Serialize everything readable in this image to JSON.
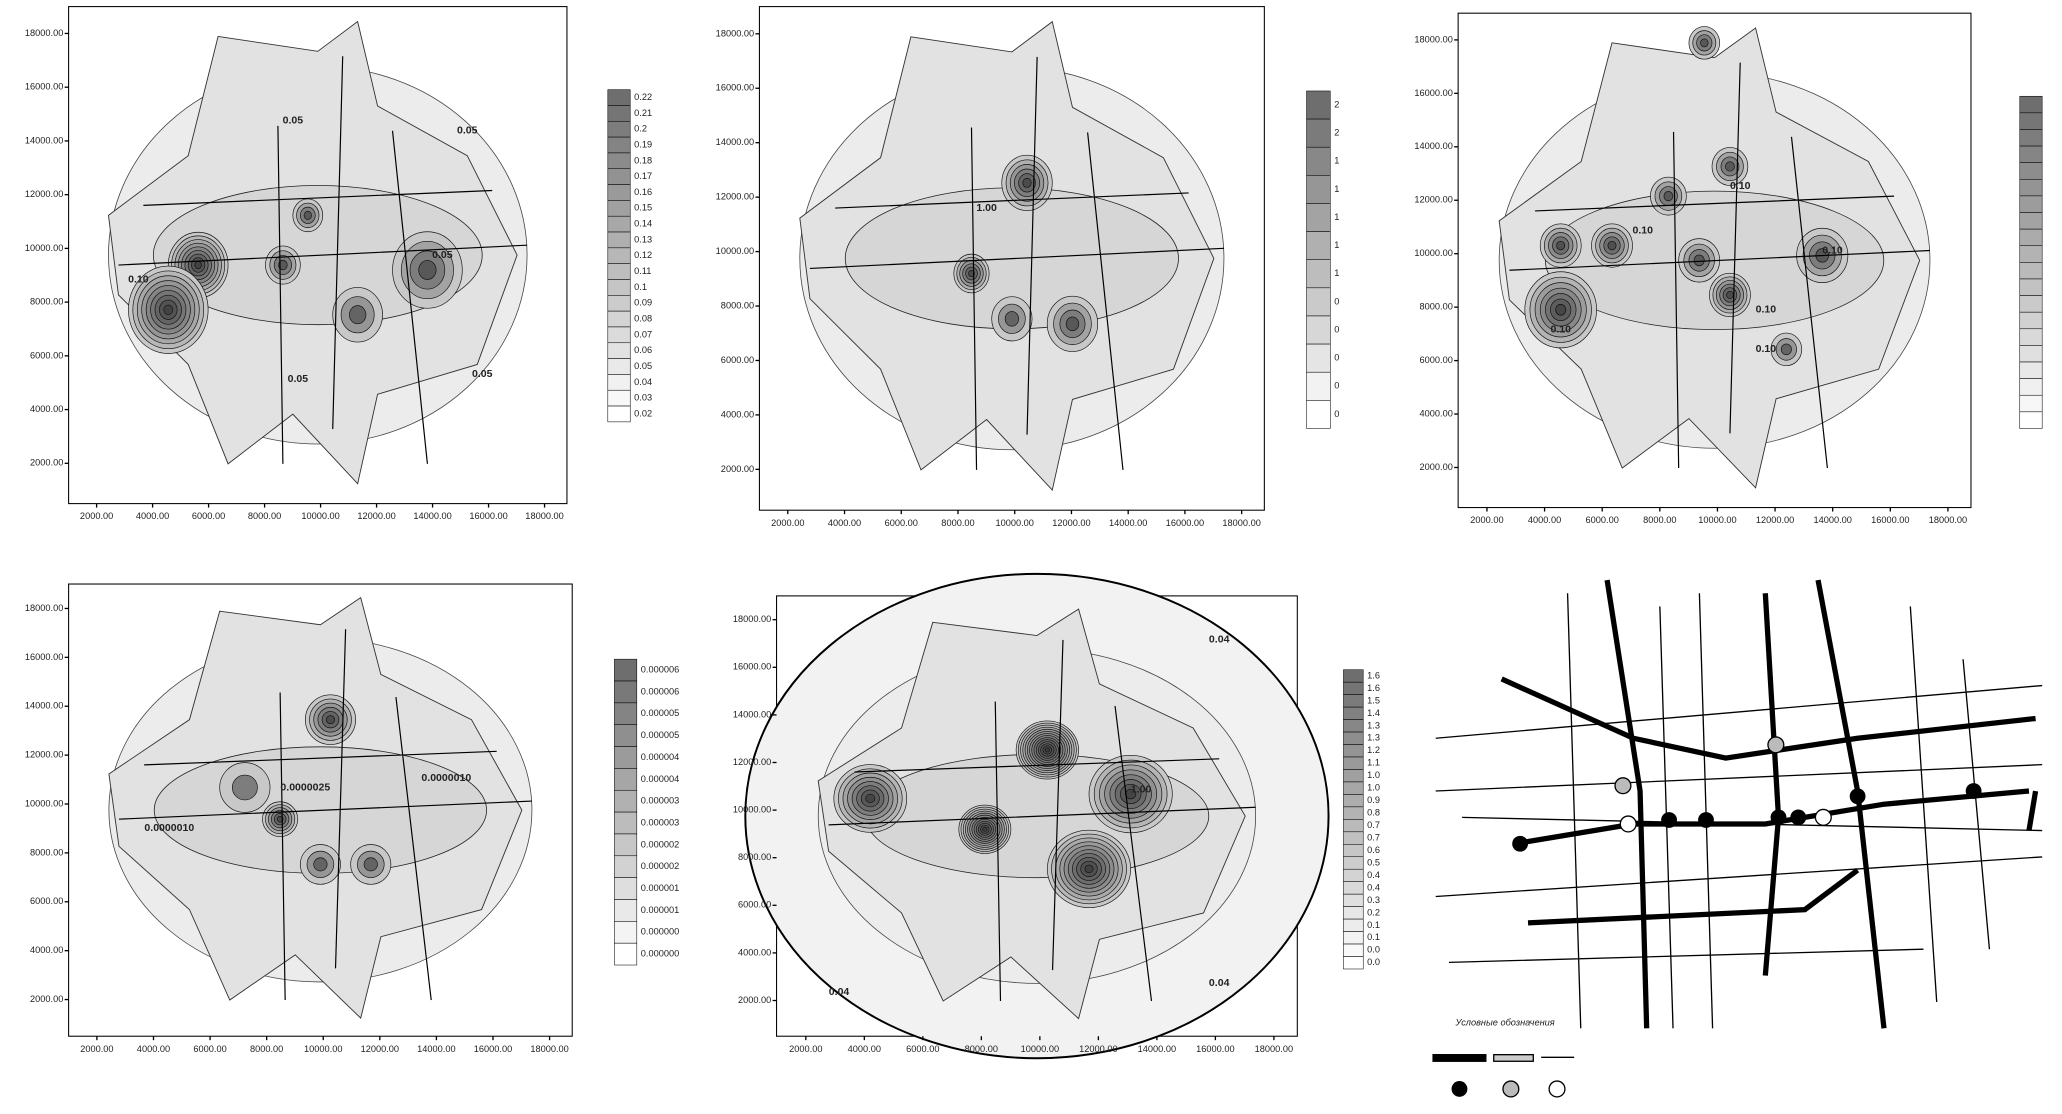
{
  "chart_data": [
    {
      "type": "contour",
      "xlim": [
        1000,
        18800
      ],
      "ylim": [
        500,
        19000
      ],
      "xticks": [
        {
          "value": 2000,
          "label": "2000.00"
        },
        {
          "value": 4000,
          "label": "4000.00"
        },
        {
          "value": 6000,
          "label": "6000.00"
        },
        {
          "value": 8000,
          "label": "8000.00"
        },
        {
          "value": 10000,
          "label": "10000.00"
        },
        {
          "value": 12000,
          "label": "12000.00"
        },
        {
          "value": 14000,
          "label": "14000.00"
        },
        {
          "value": 16000,
          "label": "16000.00"
        },
        {
          "value": 18000,
          "label": "18000.00"
        }
      ],
      "yticks": [
        {
          "value": 2000,
          "label": "2000.00"
        },
        {
          "value": 4000,
          "label": "4000.00"
        },
        {
          "value": 6000,
          "label": "6000.00"
        },
        {
          "value": 8000,
          "label": "8000.00"
        },
        {
          "value": 10000,
          "label": "10000.00"
        },
        {
          "value": 12000,
          "label": "12000.00"
        },
        {
          "value": 14000,
          "label": "14000.00"
        },
        {
          "value": 16000,
          "label": "16000.00"
        },
        {
          "value": 18000,
          "label": "18000.00"
        }
      ],
      "levels": [
        0.22,
        0.21,
        0.2,
        0.19,
        0.18,
        0.17,
        0.16,
        0.15,
        0.14,
        0.13,
        0.12,
        0.11,
        0.1,
        0.09,
        0.08,
        0.07,
        0.06,
        0.05,
        0.04,
        0.03,
        0.02
      ],
      "annotations": [
        "0.05",
        "0.05",
        "0.05",
        "0.05",
        "0.10",
        "0.05"
      ]
    },
    {
      "type": "contour",
      "xlim": [
        1000,
        18800
      ],
      "ylim": [
        500,
        19000
      ],
      "xticks": [
        {
          "value": 2000,
          "label": "2000.00"
        },
        {
          "value": 4000,
          "label": "4000.00"
        },
        {
          "value": 6000,
          "label": "6000.00"
        },
        {
          "value": 8000,
          "label": "8000.00"
        },
        {
          "value": 10000,
          "label": "10000.00"
        },
        {
          "value": 12000,
          "label": "12000.00"
        },
        {
          "value": 14000,
          "label": "14000.00"
        },
        {
          "value": 16000,
          "label": "16000.00"
        },
        {
          "value": 18000,
          "label": "18000.00"
        }
      ],
      "yticks": [
        {
          "value": 2000,
          "label": "2000.00"
        },
        {
          "value": 4000,
          "label": "4000.00"
        },
        {
          "value": 6000,
          "label": "6000.00"
        },
        {
          "value": 8000,
          "label": "8000.00"
        },
        {
          "value": 10000,
          "label": "10000.00"
        },
        {
          "value": 12000,
          "label": "12000.00"
        },
        {
          "value": 14000,
          "label": "14000.00"
        },
        {
          "value": 16000,
          "label": "16000.00"
        },
        {
          "value": 18000,
          "label": "18000.00"
        }
      ],
      "colorbar_labels": [
        "2",
        "2",
        "1",
        "1",
        "1",
        "1",
        "1",
        "0",
        "0",
        "0",
        "0",
        "0"
      ],
      "annotations": [
        "1.00"
      ]
    },
    {
      "type": "contour",
      "xlim": [
        1000,
        18800
      ],
      "ylim": [
        500,
        19000
      ],
      "xticks": [
        {
          "value": 2000,
          "label": "2000.00"
        },
        {
          "value": 4000,
          "label": "4000.00"
        },
        {
          "value": 6000,
          "label": "6000.00"
        },
        {
          "value": 8000,
          "label": "8000.00"
        },
        {
          "value": 10000,
          "label": "10000.00"
        },
        {
          "value": 12000,
          "label": "12000.00"
        },
        {
          "value": 14000,
          "label": "14000.00"
        },
        {
          "value": 16000,
          "label": "16000.00"
        },
        {
          "value": 18000,
          "label": "18000.00"
        }
      ],
      "yticks": [
        {
          "value": 2000,
          "label": "2000.00"
        },
        {
          "value": 4000,
          "label": "4000.00"
        },
        {
          "value": 6000,
          "label": "6000.00"
        },
        {
          "value": 8000,
          "label": "8000.00"
        },
        {
          "value": 10000,
          "label": "10000.00"
        },
        {
          "value": 12000,
          "label": "12000.00"
        },
        {
          "value": 14000,
          "label": "14000.00"
        },
        {
          "value": 16000,
          "label": "16000.00"
        },
        {
          "value": 18000,
          "label": "18000.00"
        }
      ],
      "annotations": [
        "0.10",
        "0.10",
        "0.10",
        "0.10",
        "0.10",
        "0.10"
      ]
    },
    {
      "type": "contour",
      "xlim": [
        1000,
        18800
      ],
      "ylim": [
        500,
        19000
      ],
      "xticks": [
        {
          "value": 2000,
          "label": "2000.00"
        },
        {
          "value": 4000,
          "label": "4000.00"
        },
        {
          "value": 6000,
          "label": "6000.00"
        },
        {
          "value": 8000,
          "label": "8000.00"
        },
        {
          "value": 10000,
          "label": "10000.00"
        },
        {
          "value": 12000,
          "label": "12000.00"
        },
        {
          "value": 14000,
          "label": "14000.00"
        },
        {
          "value": 16000,
          "label": "16000.00"
        },
        {
          "value": 18000,
          "label": "18000.00"
        }
      ],
      "yticks": [
        {
          "value": 2000,
          "label": "2000.00"
        },
        {
          "value": 4000,
          "label": "4000.00"
        },
        {
          "value": 6000,
          "label": "6000.00"
        },
        {
          "value": 8000,
          "label": "8000.00"
        },
        {
          "value": 10000,
          "label": "10000.00"
        },
        {
          "value": 12000,
          "label": "12000.00"
        },
        {
          "value": 14000,
          "label": "14000.00"
        },
        {
          "value": 16000,
          "label": "16000.00"
        },
        {
          "value": 18000,
          "label": "18000.00"
        }
      ],
      "colorbar_labels": [
        "0.000006",
        "0.000006",
        "0.000005",
        "0.000005",
        "0.000004",
        "0.000004",
        "0.000003",
        "0.000003",
        "0.000002",
        "0.000002",
        "0.000001",
        "0.000001",
        "0.000000",
        "0.000000"
      ],
      "annotations": [
        "0.0000010",
        "0.0000025",
        "0.0000010"
      ]
    },
    {
      "type": "contour",
      "xlim": [
        1000,
        18800
      ],
      "ylim": [
        500,
        19000
      ],
      "xticks": [
        {
          "value": 2000,
          "label": "2000.00"
        },
        {
          "value": 4000,
          "label": "4000.00"
        },
        {
          "value": 6000,
          "label": "6000.00"
        },
        {
          "value": 8000,
          "label": "8000.00"
        },
        {
          "value": 10000,
          "label": "10000.00"
        },
        {
          "value": 12000,
          "label": "12000.00"
        },
        {
          "value": 14000,
          "label": "14000.00"
        },
        {
          "value": 16000,
          "label": "16000.00"
        },
        {
          "value": 18000,
          "label": "18000.00"
        }
      ],
      "yticks": [
        {
          "value": 2000,
          "label": "2000.00"
        },
        {
          "value": 4000,
          "label": "4000.00"
        },
        {
          "value": 6000,
          "label": "6000.00"
        },
        {
          "value": 8000,
          "label": "8000.00"
        },
        {
          "value": 10000,
          "label": "10000.00"
        },
        {
          "value": 12000,
          "label": "12000.00"
        },
        {
          "value": 14000,
          "label": "14000.00"
        },
        {
          "value": 16000,
          "label": "16000.00"
        },
        {
          "value": 18000,
          "label": "18000.00"
        }
      ],
      "colorbar_labels": [
        "1.6",
        "1.6",
        "1.5",
        "1.4",
        "1.3",
        "1.3",
        "1.2",
        "1.1",
        "1.0",
        "1.0",
        "0.9",
        "0.8",
        "0.7",
        "0.7",
        "0.6",
        "0.5",
        "0.4",
        "0.4",
        "0.3",
        "0.2",
        "0.1",
        "0.1",
        "0.0",
        "0.0"
      ],
      "annotations": [
        "0.04",
        "0.04",
        "0.04",
        "1.00"
      ]
    }
  ],
  "map": {
    "legend_title": "Условные обозначения"
  }
}
